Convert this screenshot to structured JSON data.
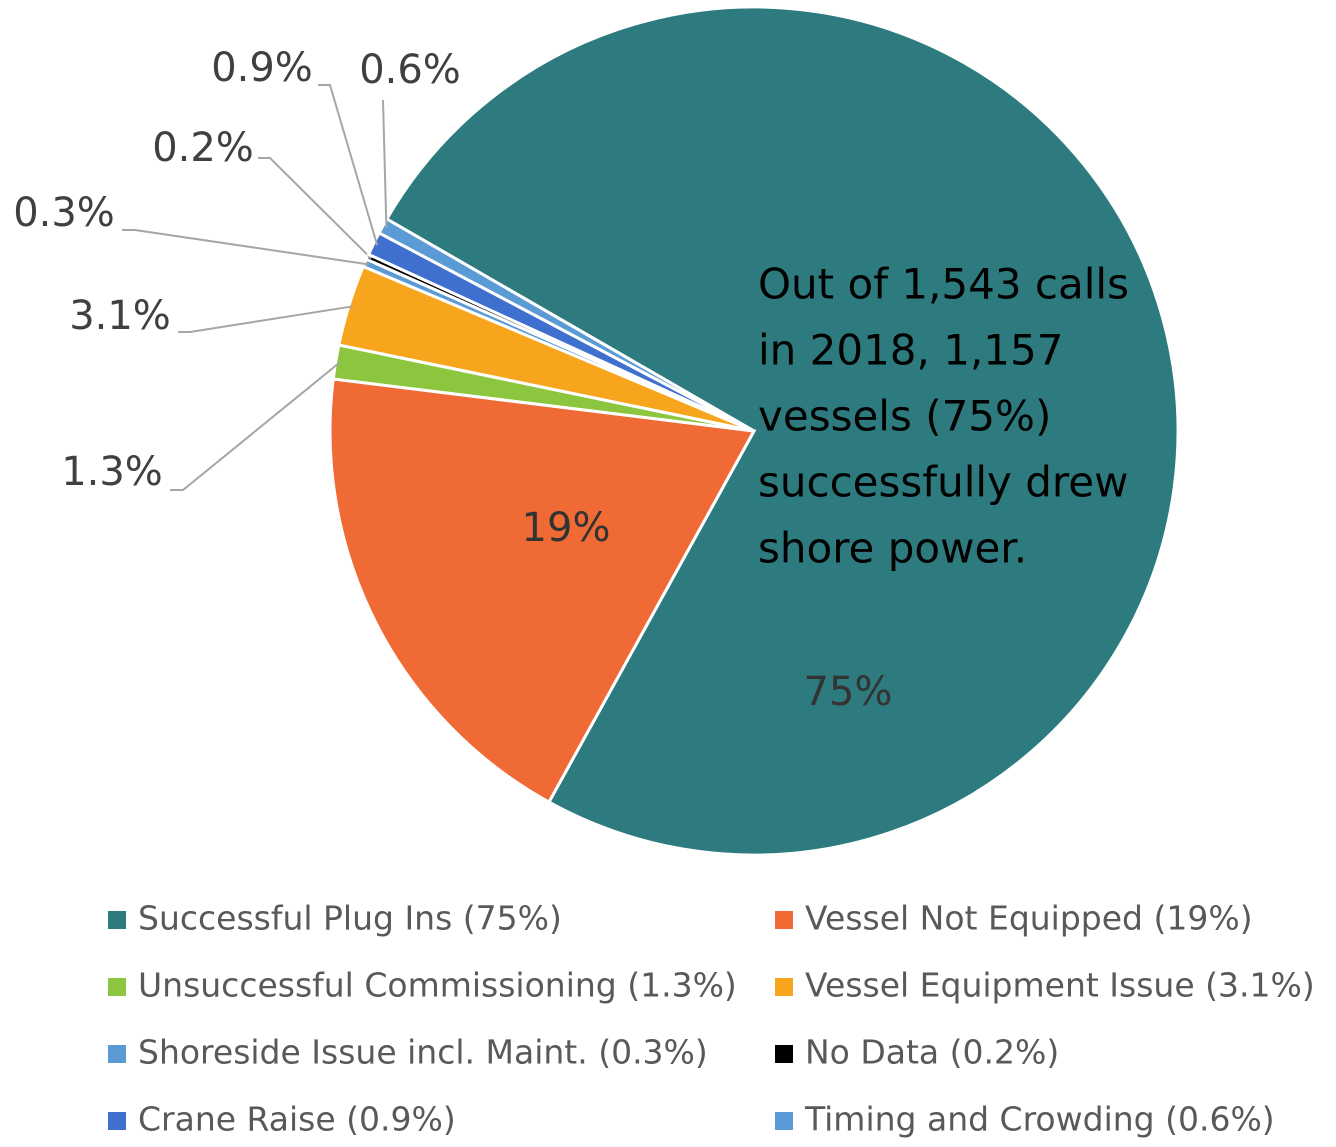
{
  "chart_data": {
    "type": "pie",
    "categories": [
      "Successful Plug Ins (75%)",
      "Vessel Not Equipped (19%)",
      "Unsuccessful Commissioning (1.3%)",
      "Vessel Equipment Issue (3.1%)",
      "Shoreside Issue incl. Maint. (0.3%)",
      "No Data (0.2%)",
      "Crane Raise (0.9%)",
      "Timing and Crowding (0.6%)"
    ],
    "values": [
      75,
      19,
      1.3,
      3.1,
      0.3,
      0.2,
      0.9,
      0.6
    ],
    "value_labels": [
      "75%",
      "19%",
      "1.3%",
      "3.1%",
      "0.3%",
      "0.2%",
      "0.9%",
      "0.6%"
    ],
    "colors": [
      "#2e7b7f",
      "#f06a36",
      "#8cc63f",
      "#f7a51c",
      "#5b9bd5",
      "#000000",
      "#3f6fcf",
      "#5b9bd5"
    ],
    "annotation": [
      "Out of 1,543 calls",
      "in 2018, 1,157",
      "vessels (75%)",
      "successfully drew",
      "shore power."
    ],
    "legend": "bottom"
  }
}
